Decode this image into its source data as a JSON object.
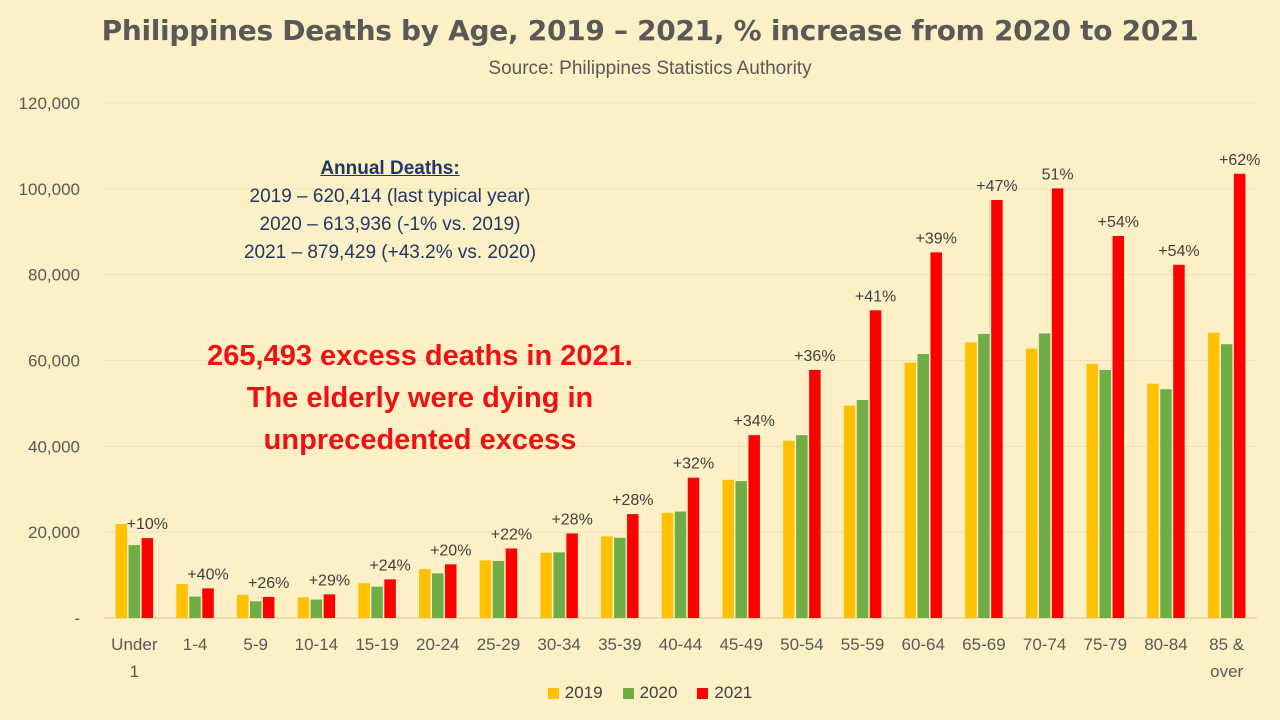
{
  "chart_data": {
    "type": "bar",
    "title": "Philippines Deaths by Age, 2019 – 2021, % increase from 2020 to 2021",
    "subtitle": "Source: Philippines Statistics Authority",
    "categories": [
      "Under 1",
      "1-4",
      "5-9",
      "10-14",
      "15-19",
      "20-24",
      "25-29",
      "30-34",
      "35-39",
      "40-44",
      "45-49",
      "50-54",
      "55-59",
      "60-64",
      "65-69",
      "70-74",
      "75-79",
      "80-84",
      "85 & over"
    ],
    "category_lines": [
      [
        "Under",
        "1"
      ],
      [
        "1-4"
      ],
      [
        "5-9"
      ],
      [
        "10-14"
      ],
      [
        "15-19"
      ],
      [
        "20-24"
      ],
      [
        "25-29"
      ],
      [
        "30-34"
      ],
      [
        "35-39"
      ],
      [
        "40-44"
      ],
      [
        "45-49"
      ],
      [
        "50-54"
      ],
      [
        "55-59"
      ],
      [
        "60-64"
      ],
      [
        "65-69"
      ],
      [
        "70-74"
      ],
      [
        "75-79"
      ],
      [
        "80-84"
      ],
      [
        "85 &",
        "over"
      ]
    ],
    "series": [
      {
        "name": "2019",
        "color": "#ffc000",
        "values": [
          21900,
          7900,
          5400,
          4800,
          8100,
          11400,
          13400,
          15200,
          19000,
          24500,
          32200,
          41300,
          49500,
          59500,
          64200,
          62800,
          59200,
          54600,
          66500
        ]
      },
      {
        "name": "2020",
        "color": "#70ad47",
        "values": [
          17000,
          5000,
          3900,
          4300,
          7300,
          10400,
          13300,
          15300,
          18700,
          24800,
          31900,
          42600,
          50800,
          61500,
          66200,
          66300,
          57800,
          53300,
          63800
        ]
      },
      {
        "name": "2021",
        "color": "#ff0000",
        "values": [
          18600,
          6900,
          4900,
          5500,
          9000,
          12500,
          16200,
          19700,
          24200,
          32700,
          42600,
          57800,
          71700,
          85200,
          97400,
          100100,
          89000,
          82300,
          103500
        ]
      }
    ],
    "increase_labels": [
      "+10%",
      "+40%",
      "+26%",
      "+29%",
      "+24%",
      "+20%",
      "+22%",
      "+28%",
      "+28%",
      "+32%",
      "+34%",
      "+36%",
      "+41%",
      "+39%",
      "+47%",
      "51%",
      "+54%",
      "+54%",
      "+62%"
    ],
    "ylim": [
      0,
      120000
    ],
    "yticks": [
      0,
      20000,
      40000,
      60000,
      80000,
      100000,
      120000
    ],
    "ytick_labels": [
      "-",
      "20,000",
      "40,000",
      "60,000",
      "80,000",
      "100,000",
      "120,000"
    ],
    "xlabel": "",
    "ylabel": "",
    "grid": true,
    "legend_position": "bottom"
  },
  "annotations": {
    "annual_header": "Annual Deaths:",
    "annual_lines": [
      "2019 – 620,414 (last typical year)",
      "2020 – 613,936 (-1% vs. 2019)",
      "2021 – 879,429 (+43.2% vs. 2020)"
    ],
    "excess_lines": [
      "265,493 excess deaths in 2021.",
      "The elderly were dying in",
      "unprecedented excess"
    ]
  }
}
